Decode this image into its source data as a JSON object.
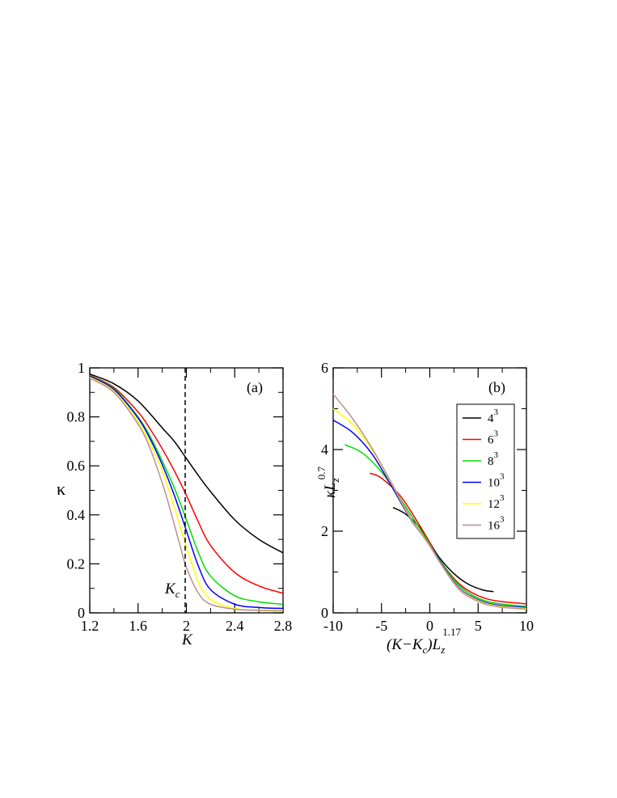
{
  "chart_data": [
    {
      "type": "line",
      "panel_label": "(a)",
      "ylabel": "κ",
      "xlabel": "K",
      "xlim": [
        1.2,
        2.8
      ],
      "ylim": [
        0,
        1
      ],
      "xticks": [
        "1.2",
        "1.6",
        "2",
        "2.4",
        "2.8"
      ],
      "yticks": [
        "0",
        "0.2",
        "0.4",
        "0.6",
        "0.8",
        "1"
      ],
      "annotation": {
        "text": "K",
        "sub": "c",
        "x": 1.99
      },
      "series": [
        {
          "color": "#000000",
          "x": [
            1.2,
            1.4,
            1.6,
            1.8,
            1.9,
            2.0,
            2.1,
            2.2,
            2.4,
            2.6,
            2.8
          ],
          "values": [
            0.975,
            0.935,
            0.865,
            0.755,
            0.7,
            0.63,
            0.56,
            0.495,
            0.38,
            0.3,
            0.245
          ]
        },
        {
          "color": "#ff0000",
          "x": [
            1.2,
            1.4,
            1.6,
            1.7,
            1.8,
            1.9,
            2.0,
            2.1,
            2.2,
            2.4,
            2.6,
            2.8
          ],
          "values": [
            0.97,
            0.92,
            0.82,
            0.75,
            0.67,
            0.58,
            0.48,
            0.37,
            0.275,
            0.165,
            0.11,
            0.08
          ]
        },
        {
          "color": "#00dd00",
          "x": [
            1.2,
            1.4,
            1.6,
            1.7,
            1.8,
            1.9,
            2.0,
            2.1,
            2.2,
            2.4,
            2.6,
            2.8
          ],
          "values": [
            0.968,
            0.915,
            0.8,
            0.72,
            0.62,
            0.51,
            0.38,
            0.245,
            0.15,
            0.07,
            0.045,
            0.035
          ]
        },
        {
          "color": "#0000ff",
          "x": [
            1.2,
            1.4,
            1.6,
            1.7,
            1.8,
            1.9,
            2.0,
            2.1,
            2.2,
            2.4,
            2.6,
            2.8
          ],
          "values": [
            0.966,
            0.912,
            0.795,
            0.71,
            0.605,
            0.48,
            0.335,
            0.19,
            0.095,
            0.035,
            0.022,
            0.018
          ]
        },
        {
          "color": "#ffff00",
          "x": [
            1.2,
            1.4,
            1.6,
            1.7,
            1.8,
            1.9,
            2.0,
            2.1,
            2.2,
            2.4,
            2.6,
            2.8
          ],
          "values": [
            0.962,
            0.905,
            0.78,
            0.69,
            0.58,
            0.43,
            0.27,
            0.125,
            0.055,
            0.018,
            0.012,
            0.01
          ]
        },
        {
          "color": "#bc8f8f",
          "x": [
            1.2,
            1.4,
            1.6,
            1.7,
            1.8,
            1.85,
            1.9,
            1.95,
            2.0,
            2.1,
            2.2,
            2.4,
            2.6,
            2.8
          ],
          "values": [
            0.958,
            0.9,
            0.77,
            0.67,
            0.53,
            0.45,
            0.36,
            0.27,
            0.185,
            0.08,
            0.035,
            0.015,
            0.01,
            0.008
          ]
        }
      ]
    },
    {
      "type": "line",
      "panel_label": "(b)",
      "ylabel": "κL",
      "ylabel_sub": "z",
      "ylabel_sup": "0.7",
      "xlabel": "(K−K",
      "xlabel_sub1": "c",
      "xlabel_mid": ")L",
      "xlabel_sub2": "z",
      "xlabel_sup": "1.17",
      "xlim": [
        -10,
        10
      ],
      "ylim": [
        0,
        6
      ],
      "xticks": [
        "-10",
        "-5",
        "0",
        "5",
        "10"
      ],
      "yticks": [
        "0",
        "2",
        "4",
        "6"
      ],
      "legend": {
        "placement": "top-right"
      },
      "series": [
        {
          "name": "4",
          "sup": "3",
          "color": "#000000",
          "x": [
            -3.8,
            -2.5,
            -1,
            0,
            1,
            2.5,
            4,
            5.5,
            6.6
          ],
          "values": [
            2.58,
            2.42,
            2.08,
            1.72,
            1.35,
            0.96,
            0.7,
            0.56,
            0.52
          ]
        },
        {
          "name": "6",
          "sup": "3",
          "color": "#ff0000",
          "x": [
            -6.2,
            -5,
            -3,
            -1,
            0,
            1,
            3,
            5,
            7,
            10
          ],
          "values": [
            3.42,
            3.3,
            2.85,
            2.12,
            1.72,
            1.3,
            0.72,
            0.42,
            0.29,
            0.22
          ]
        },
        {
          "name": "8",
          "sup": "3",
          "color": "#00dd00",
          "x": [
            -8.8,
            -7,
            -5,
            -3,
            -1,
            0,
            1,
            3,
            5,
            7,
            10
          ],
          "values": [
            4.12,
            3.92,
            3.45,
            2.78,
            2.05,
            1.68,
            1.3,
            0.68,
            0.36,
            0.23,
            0.16
          ]
        },
        {
          "name": "10",
          "sup": "3",
          "color": "#0000ff",
          "x": [
            -10,
            -8,
            -6,
            -4,
            -2,
            0,
            1,
            3,
            5,
            7,
            10
          ],
          "values": [
            4.72,
            4.42,
            3.9,
            3.12,
            2.3,
            1.66,
            1.28,
            0.62,
            0.32,
            0.19,
            0.13
          ]
        },
        {
          "name": "12",
          "sup": "3",
          "color": "#ffff00",
          "x": [
            -10,
            -8,
            -6,
            -4,
            -2,
            0,
            1,
            3,
            5,
            7,
            10
          ],
          "values": [
            5.0,
            4.62,
            4.0,
            3.18,
            2.32,
            1.65,
            1.26,
            0.6,
            0.3,
            0.17,
            0.11
          ]
        },
        {
          "name": "16",
          "sup": "3",
          "color": "#bc8f8f",
          "x": [
            -10,
            -8,
            -6,
            -4,
            -2,
            0,
            1,
            3,
            5,
            7,
            10
          ],
          "values": [
            5.36,
            4.76,
            4.04,
            3.2,
            2.34,
            1.64,
            1.25,
            0.58,
            0.28,
            0.15,
            0.09
          ]
        }
      ]
    }
  ]
}
